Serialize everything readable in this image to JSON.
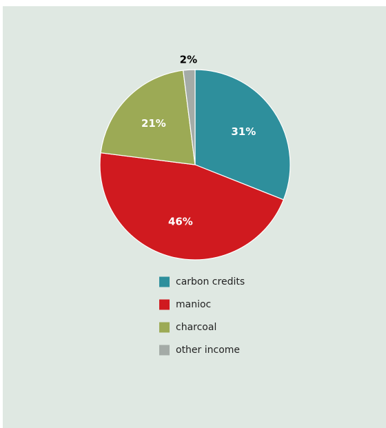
{
  "chart_data": {
    "type": "pie",
    "title": "",
    "legend_position": "bottom",
    "start_angle_deg": 0,
    "direction": "clockwise",
    "slices": [
      {
        "label": "carbon credits",
        "value": 31,
        "value_label": "31%",
        "color": "#2e8f9c",
        "label_style": "inside"
      },
      {
        "label": "manioc",
        "value": 46,
        "value_label": "46%",
        "color": "#d01a1f",
        "label_style": "inside"
      },
      {
        "label": "charcoal",
        "value": 21,
        "value_label": "21%",
        "color": "#9caa55",
        "label_style": "inside"
      },
      {
        "label": "other income",
        "value": 2,
        "value_label": "2%",
        "color": "#a4aba7",
        "label_style": "outside"
      }
    ]
  }
}
